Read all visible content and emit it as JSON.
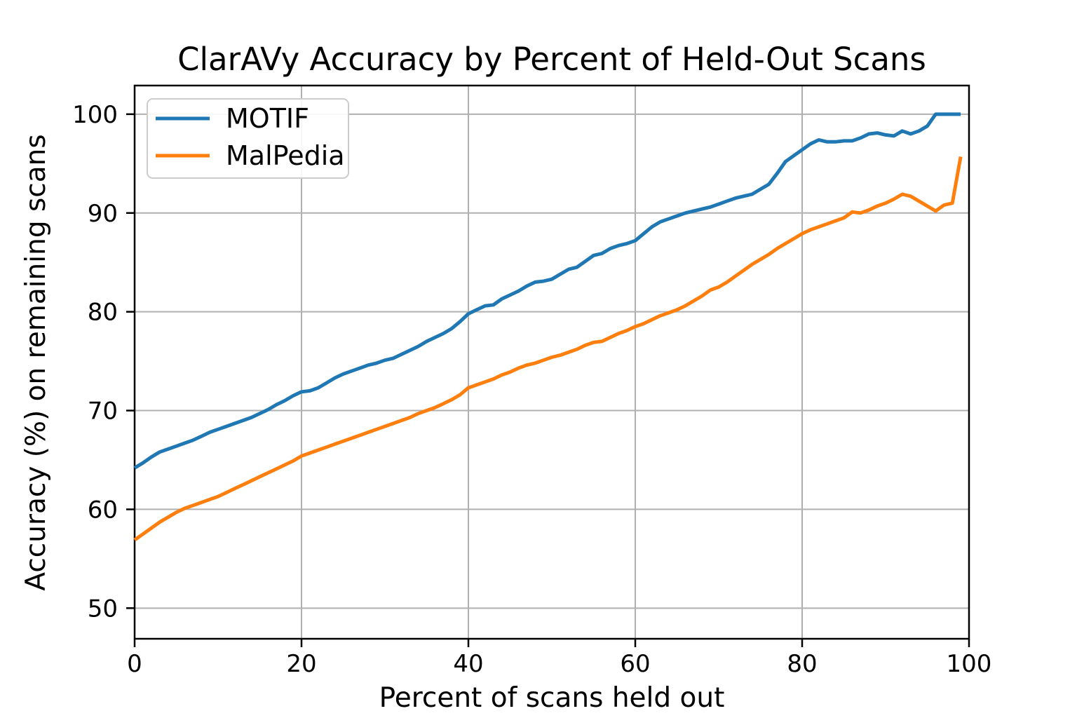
{
  "figure": {
    "title": "ClarAVy Accuracy by Percent of Held-Out Scans",
    "xlabel": "Percent of scans held out",
    "ylabel": "Accuracy (%) on remaining scans",
    "background_color": "#ffffff",
    "spine_color": "#000000",
    "grid_color": "#b0b0b0",
    "legend_border_color": "#cccccc"
  },
  "legend": {
    "entries": [
      {
        "label": "MOTIF",
        "color": "#1f77b4"
      },
      {
        "label": "MalPedia",
        "color": "#ff7f0e"
      }
    ]
  },
  "chart_data": {
    "type": "line",
    "title": "ClarAVy Accuracy by Percent of Held-Out Scans",
    "xlabel": "Percent of scans held out",
    "ylabel": "Accuracy (%) on remaining scans",
    "xlim": [
      0,
      100
    ],
    "ylim": [
      46.9,
      102.9
    ],
    "x_ticks": [
      0,
      20,
      40,
      60,
      80,
      100
    ],
    "y_ticks": [
      50,
      60,
      70,
      80,
      90,
      100
    ],
    "grid": true,
    "legend_position": "upper-left",
    "x": [
      0,
      1,
      2,
      3,
      4,
      5,
      6,
      7,
      8,
      9,
      10,
      11,
      12,
      13,
      14,
      15,
      16,
      17,
      18,
      19,
      20,
      21,
      22,
      23,
      24,
      25,
      26,
      27,
      28,
      29,
      30,
      31,
      32,
      33,
      34,
      35,
      36,
      37,
      38,
      39,
      40,
      41,
      42,
      43,
      44,
      45,
      46,
      47,
      48,
      49,
      50,
      51,
      52,
      53,
      54,
      55,
      56,
      57,
      58,
      59,
      60,
      61,
      62,
      63,
      64,
      65,
      66,
      67,
      68,
      69,
      70,
      71,
      72,
      73,
      74,
      75,
      76,
      77,
      78,
      79,
      80,
      81,
      82,
      83,
      84,
      85,
      86,
      87,
      88,
      89,
      90,
      91,
      92,
      93,
      94,
      95,
      96,
      97,
      98,
      99
    ],
    "series": [
      {
        "name": "MOTIF",
        "color": "#1f77b4",
        "values": [
          64.2,
          64.7,
          65.3,
          65.8,
          66.1,
          66.4,
          66.7,
          67.0,
          67.4,
          67.8,
          68.1,
          68.4,
          68.7,
          69.0,
          69.3,
          69.7,
          70.1,
          70.6,
          71.0,
          71.5,
          71.9,
          72.0,
          72.3,
          72.8,
          73.3,
          73.7,
          74.0,
          74.3,
          74.6,
          74.8,
          75.1,
          75.3,
          75.7,
          76.1,
          76.5,
          77.0,
          77.4,
          77.8,
          78.3,
          79.0,
          79.8,
          80.2,
          80.6,
          80.7,
          81.3,
          81.7,
          82.1,
          82.6,
          83.0,
          83.1,
          83.3,
          83.8,
          84.3,
          84.5,
          85.1,
          85.7,
          85.9,
          86.4,
          86.7,
          86.9,
          87.2,
          87.9,
          88.6,
          89.1,
          89.4,
          89.7,
          90.0,
          90.2,
          90.4,
          90.6,
          90.9,
          91.2,
          91.5,
          91.7,
          91.9,
          92.4,
          92.9,
          94.0,
          95.2,
          95.8,
          96.4,
          97.0,
          97.4,
          97.2,
          97.2,
          97.3,
          97.3,
          97.6,
          98.0,
          98.1,
          97.9,
          97.8,
          98.3,
          98.0,
          98.3,
          98.8,
          100.0,
          100.0,
          100.0,
          100.0
        ]
      },
      {
        "name": "MalPedia",
        "color": "#ff7f0e",
        "values": [
          56.9,
          57.5,
          58.1,
          58.7,
          59.2,
          59.7,
          60.1,
          60.4,
          60.7,
          61.0,
          61.3,
          61.7,
          62.1,
          62.5,
          62.9,
          63.3,
          63.7,
          64.1,
          64.5,
          64.9,
          65.4,
          65.7,
          66.0,
          66.3,
          66.6,
          66.9,
          67.2,
          67.5,
          67.8,
          68.1,
          68.4,
          68.7,
          69.0,
          69.3,
          69.7,
          70.0,
          70.3,
          70.7,
          71.1,
          71.6,
          72.3,
          72.6,
          72.9,
          73.2,
          73.6,
          73.9,
          74.3,
          74.6,
          74.8,
          75.1,
          75.4,
          75.6,
          75.9,
          76.2,
          76.6,
          76.9,
          77.0,
          77.4,
          77.8,
          78.1,
          78.5,
          78.8,
          79.2,
          79.6,
          79.9,
          80.2,
          80.6,
          81.1,
          81.6,
          82.2,
          82.5,
          83.0,
          83.6,
          84.2,
          84.8,
          85.3,
          85.8,
          86.4,
          86.9,
          87.4,
          87.9,
          88.3,
          88.6,
          88.9,
          89.2,
          89.5,
          90.1,
          90.0,
          90.3,
          90.7,
          91.0,
          91.4,
          91.9,
          91.7,
          91.2,
          90.7,
          90.2,
          90.8,
          91.0,
          95.7
        ]
      }
    ]
  }
}
